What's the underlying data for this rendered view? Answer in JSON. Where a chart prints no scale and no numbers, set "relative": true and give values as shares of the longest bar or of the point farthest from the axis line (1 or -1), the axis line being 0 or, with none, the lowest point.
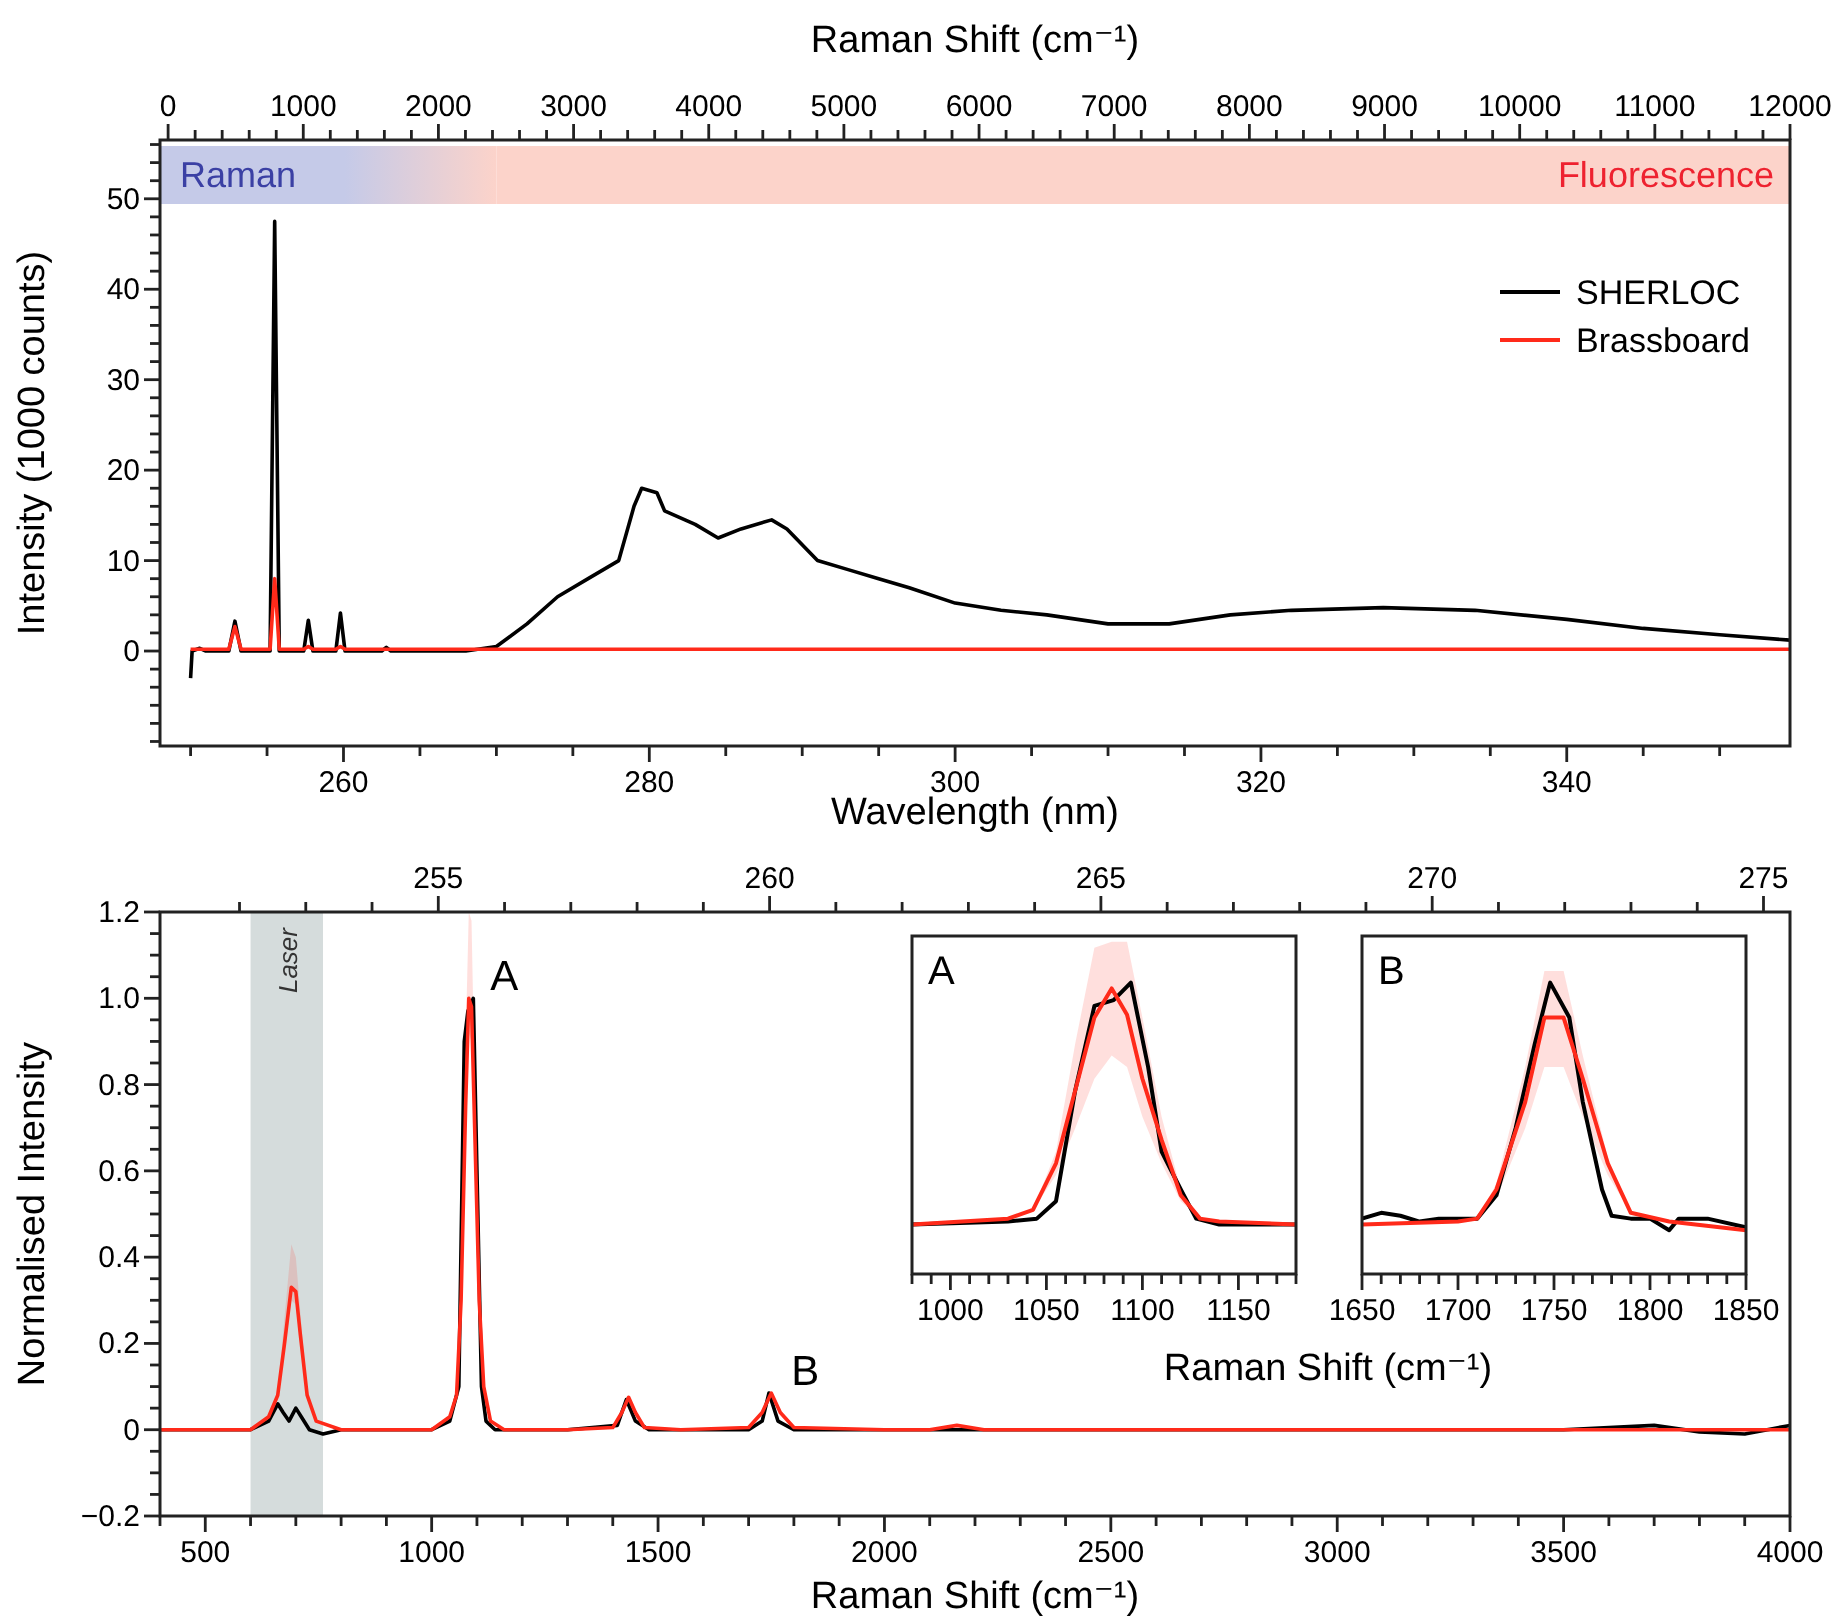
{
  "chart_data": [
    {
      "type": "line",
      "xlabel": "Wavelength (nm)",
      "x2label": "Raman Shift (cm⁻¹)",
      "ylabel": "Intensity (1000 counts)",
      "xlim": [
        248,
        354.6
      ],
      "x2lim": [
        -60,
        12000
      ],
      "ylim": [
        -10.5,
        56.5
      ],
      "xticks": [
        260,
        280,
        300,
        320,
        340,
        {
          "value": 250,
          "label": null
        },
        {
          "value": 255,
          "label": null
        },
        {
          "value": 265,
          "label": null
        },
        {
          "value": 270,
          "label": null
        },
        {
          "value": 275,
          "label": null
        },
        {
          "value": 285,
          "label": null
        },
        {
          "value": 290,
          "label": null
        },
        {
          "value": 295,
          "label": null
        },
        {
          "value": 305,
          "label": null
        },
        {
          "value": 310,
          "label": null
        },
        {
          "value": 315,
          "label": null
        },
        {
          "value": 325,
          "label": null
        },
        {
          "value": 330,
          "label": null
        },
        {
          "value": 335,
          "label": null
        },
        {
          "value": 345,
          "label": null
        },
        {
          "value": 350,
          "label": null
        }
      ],
      "x2ticks": [
        0,
        1000,
        2000,
        3000,
        4000,
        5000,
        6000,
        7000,
        8000,
        9000,
        10000,
        11000,
        12000,
        {
          "value": 200,
          "label": null
        },
        {
          "value": 400,
          "label": null
        },
        {
          "value": 600,
          "label": null
        },
        {
          "value": 800,
          "label": null
        },
        {
          "value": 1200,
          "label": null
        },
        {
          "value": 1400,
          "label": null
        },
        {
          "value": 1600,
          "label": null
        },
        {
          "value": 1800,
          "label": null
        },
        {
          "value": 2200,
          "label": null
        },
        {
          "value": 2400,
          "label": null
        },
        {
          "value": 2600,
          "label": null
        },
        {
          "value": 2800,
          "label": null
        },
        {
          "value": 3200,
          "label": null
        },
        {
          "value": 3400,
          "label": null
        },
        {
          "value": 3600,
          "label": null
        },
        {
          "value": 3800,
          "label": null
        },
        {
          "value": 4200,
          "label": null
        },
        {
          "value": 4400,
          "label": null
        },
        {
          "value": 4600,
          "label": null
        },
        {
          "value": 4800,
          "label": null
        },
        {
          "value": 5200,
          "label": null
        },
        {
          "value": 5400,
          "label": null
        },
        {
          "value": 5600,
          "label": null
        },
        {
          "value": 5800,
          "label": null
        },
        {
          "value": 6200,
          "label": null
        },
        {
          "value": 6400,
          "label": null
        },
        {
          "value": 6600,
          "label": null
        },
        {
          "value": 6800,
          "label": null
        },
        {
          "value": 7200,
          "label": null
        },
        {
          "value": 7400,
          "label": null
        },
        {
          "value": 7600,
          "label": null
        },
        {
          "value": 7800,
          "label": null
        },
        {
          "value": 8200,
          "label": null
        },
        {
          "value": 8400,
          "label": null
        },
        {
          "value": 8600,
          "label": null
        },
        {
          "value": 8800,
          "label": null
        },
        {
          "value": 9200,
          "label": null
        },
        {
          "value": 9400,
          "label": null
        },
        {
          "value": 9600,
          "label": null
        },
        {
          "value": 9800,
          "label": null
        },
        {
          "value": 10200,
          "label": null
        },
        {
          "value": 10400,
          "label": null
        },
        {
          "value": 10600,
          "label": null
        },
        {
          "value": 10800,
          "label": null
        },
        {
          "value": 11200,
          "label": null
        },
        {
          "value": 11400,
          "label": null
        },
        {
          "value": 11600,
          "label": null
        },
        {
          "value": 11800,
          "label": null
        }
      ],
      "yticks": [
        0,
        10,
        20,
        30,
        40,
        50,
        {
          "value": -10,
          "label": null
        },
        {
          "value": -8,
          "label": null
        },
        {
          "value": -6,
          "label": null
        },
        {
          "value": -4,
          "label": null
        },
        {
          "value": -2,
          "label": null
        },
        {
          "value": 2,
          "label": null
        },
        {
          "value": 4,
          "label": null
        },
        {
          "value": 6,
          "label": null
        },
        {
          "value": 8,
          "label": null
        },
        {
          "value": 12,
          "label": null
        },
        {
          "value": 14,
          "label": null
        },
        {
          "value": 16,
          "label": null
        },
        {
          "value": 18,
          "label": null
        },
        {
          "value": 22,
          "label": null
        },
        {
          "value": 24,
          "label": null
        },
        {
          "value": 26,
          "label": null
        },
        {
          "value": 28,
          "label": null
        },
        {
          "value": 32,
          "label": null
        },
        {
          "value": 34,
          "label": null
        },
        {
          "value": 36,
          "label": null
        },
        {
          "value": 38,
          "label": null
        },
        {
          "value": 42,
          "label": null
        },
        {
          "value": 44,
          "label": null
        },
        {
          "value": 46,
          "label": null
        },
        {
          "value": 48,
          "label": null
        },
        {
          "value": 52,
          "label": null
        },
        {
          "value": 54,
          "label": null
        },
        {
          "value": 56,
          "label": null
        }
      ],
      "bands": [
        {
          "axis": "x",
          "from": 248,
          "to": 270,
          "label": "Raman",
          "color": "#c5cae8"
        },
        {
          "axis": "x",
          "from": 270,
          "to": 354.6,
          "label": "Fluorescence",
          "color": "#fcd3ca"
        }
      ],
      "legend": "top right",
      "series": [
        {
          "name": "SHERLOC",
          "color": "#000000",
          "x": [
            250,
            250.1,
            250.6,
            251,
            252.5,
            252.9,
            253.3,
            254,
            255.2,
            255.5,
            255.8,
            256.5,
            257.4,
            257.7,
            258,
            259.5,
            259.8,
            260.1,
            262.5,
            262.8,
            263.1,
            268,
            270,
            272,
            274,
            276,
            278,
            279,
            279.5,
            280.5,
            281,
            283,
            284.5,
            286,
            288,
            289,
            291,
            293,
            295,
            297,
            300,
            303,
            306,
            310,
            314,
            318,
            322,
            328,
            334,
            340,
            345,
            350,
            354.6
          ],
          "values": [
            -3,
            0,
            0.3,
            0,
            0,
            3.3,
            0,
            0,
            0,
            47.5,
            0,
            0,
            0,
            3.4,
            0,
            0,
            4.2,
            0,
            0,
            0.4,
            0,
            0,
            0.5,
            3,
            6,
            8,
            10,
            16,
            18,
            17.5,
            15.5,
            14,
            12.5,
            13.5,
            14.5,
            13.5,
            10,
            9,
            8,
            7,
            5.3,
            4.5,
            4,
            3,
            3,
            4,
            4.5,
            4.8,
            4.5,
            3.5,
            2.5,
            1.8,
            1.2
          ]
        },
        {
          "name": "Brassboard",
          "color": "#ff2a1a",
          "x": [
            250,
            252.5,
            252.9,
            253.3,
            255.2,
            255.5,
            255.8,
            257.4,
            257.7,
            258,
            259.5,
            259.8,
            260.1,
            354.6
          ],
          "values": [
            0.2,
            0.2,
            2.7,
            0.2,
            0.2,
            8,
            0.2,
            0.2,
            0.5,
            0.2,
            0.2,
            0.5,
            0.2,
            0.2
          ]
        }
      ]
    },
    {
      "type": "line",
      "xlabel": "Raman Shift (cm⁻¹)",
      "ylabel": "Normalised Intensity",
      "xlim": [
        400,
        4000
      ],
      "x2lim": [
        250.8,
        275.4
      ],
      "ylim": [
        -0.2,
        1.2
      ],
      "xticks": [
        500,
        1000,
        1500,
        2000,
        2500,
        3000,
        3500,
        4000,
        {
          "value": 400,
          "label": null
        },
        {
          "value": 600,
          "label": null
        },
        {
          "value": 700,
          "label": null
        },
        {
          "value": 800,
          "label": null
        },
        {
          "value": 900,
          "label": null
        },
        {
          "value": 1100,
          "label": null
        },
        {
          "value": 1200,
          "label": null
        },
        {
          "value": 1300,
          "label": null
        },
        {
          "value": 1400,
          "label": null
        },
        {
          "value": 1600,
          "label": null
        },
        {
          "value": 1700,
          "label": null
        },
        {
          "value": 1800,
          "label": null
        },
        {
          "value": 1900,
          "label": null
        },
        {
          "value": 2100,
          "label": null
        },
        {
          "value": 2200,
          "label": null
        },
        {
          "value": 2300,
          "label": null
        },
        {
          "value": 2400,
          "label": null
        },
        {
          "value": 2600,
          "label": null
        },
        {
          "value": 2700,
          "label": null
        },
        {
          "value": 2800,
          "label": null
        },
        {
          "value": 2900,
          "label": null
        },
        {
          "value": 3100,
          "label": null
        },
        {
          "value": 3200,
          "label": null
        },
        {
          "value": 3300,
          "label": null
        },
        {
          "value": 3400,
          "label": null
        },
        {
          "value": 3600,
          "label": null
        },
        {
          "value": 3700,
          "label": null
        },
        {
          "value": 3800,
          "label": null
        },
        {
          "value": 3900,
          "label": null
        }
      ],
      "x2ticks": [
        255,
        260,
        265,
        270,
        275,
        {
          "value": 252,
          "label": null
        },
        {
          "value": 253,
          "label": null
        },
        {
          "value": 254,
          "label": null
        },
        {
          "value": 256,
          "label": null
        },
        {
          "value": 257,
          "label": null
        },
        {
          "value": 258,
          "label": null
        },
        {
          "value": 259,
          "label": null
        },
        {
          "value": 261,
          "label": null
        },
        {
          "value": 262,
          "label": null
        },
        {
          "value": 263,
          "label": null
        },
        {
          "value": 264,
          "label": null
        },
        {
          "value": 266,
          "label": null
        },
        {
          "value": 267,
          "label": null
        },
        {
          "value": 268,
          "label": null
        },
        {
          "value": 269,
          "label": null
        },
        {
          "value": 271,
          "label": null
        },
        {
          "value": 272,
          "label": null
        },
        {
          "value": 273,
          "label": null
        },
        {
          "value": 274,
          "label": null
        }
      ],
      "yticks": [
        {
          "value": -0.2,
          "label": "−0.2"
        },
        0,
        {
          "value": 0.2,
          "label": "0.2"
        },
        {
          "value": 0.4,
          "label": "0.4"
        },
        {
          "value": 0.6,
          "label": "0.6"
        },
        {
          "value": 0.8,
          "label": "0.8"
        },
        {
          "value": 1,
          "label": "1.0"
        },
        {
          "value": 1.2,
          "label": "1.2"
        },
        {
          "value": -0.15,
          "label": null
        },
        {
          "value": -0.1,
          "label": null
        },
        {
          "value": -0.05,
          "label": null
        },
        {
          "value": 0.05,
          "label": null
        },
        {
          "value": 0.1,
          "label": null
        },
        {
          "value": 0.15,
          "label": null
        },
        {
          "value": 0.25,
          "label": null
        },
        {
          "value": 0.3,
          "label": null
        },
        {
          "value": 0.35,
          "label": null
        },
        {
          "value": 0.45,
          "label": null
        },
        {
          "value": 0.5,
          "label": null
        },
        {
          "value": 0.55,
          "label": null
        },
        {
          "value": 0.65,
          "label": null
        },
        {
          "value": 0.7,
          "label": null
        },
        {
          "value": 0.75,
          "label": null
        },
        {
          "value": 0.85,
          "label": null
        },
        {
          "value": 0.9,
          "label": null
        },
        {
          "value": 0.95,
          "label": null
        },
        {
          "value": 1.05,
          "label": null
        },
        {
          "value": 1.1,
          "label": null
        },
        {
          "value": 1.15,
          "label": null
        }
      ],
      "bands": [
        {
          "axis": "x",
          "from": 600,
          "to": 760,
          "label": "Laser",
          "color": "#d5dcdc"
        }
      ],
      "annotations": [
        {
          "text": "A",
          "x": 1085,
          "y": 1.0
        },
        {
          "text": "B",
          "x": 1750,
          "y": 0.085
        }
      ],
      "series": [
        {
          "color": "#000000",
          "x": [
            400,
            600,
            640,
            660,
            672,
            685,
            700,
            712,
            730,
            760,
            800,
            1000,
            1040,
            1060,
            1072,
            1080,
            1092,
            1100,
            1110,
            1120,
            1140,
            1300,
            1410,
            1430,
            1450,
            1480,
            1700,
            1730,
            1745,
            1765,
            1800,
            2500,
            3000,
            3500,
            3700,
            3800,
            3900,
            4000
          ],
          "values": [
            0,
            0,
            0.02,
            0.06,
            0.04,
            0.02,
            0.05,
            0.03,
            0.0,
            -0.01,
            0,
            0,
            0.02,
            0.1,
            0.9,
            0.97,
            1.0,
            0.6,
            0.1,
            0.02,
            0,
            0,
            0.01,
            0.07,
            0.02,
            0,
            0,
            0.02,
            0.085,
            0.02,
            0,
            0,
            0,
            0,
            0.01,
            -0.005,
            -0.01,
            0.01
          ]
        },
        {
          "color": "#ff2a1a",
          "x": [
            400,
            500,
            600,
            640,
            660,
            675,
            690,
            700,
            710,
            725,
            745,
            800,
            1000,
            1040,
            1055,
            1065,
            1075,
            1082,
            1088,
            1095,
            1105,
            1115,
            1130,
            1160,
            1300,
            1400,
            1420,
            1435,
            1450,
            1470,
            1550,
            1700,
            1730,
            1750,
            1770,
            1800,
            2000,
            2100,
            2160,
            2220,
            2500,
            3000,
            3500,
            4000
          ],
          "values": [
            0,
            0,
            0,
            0.03,
            0.08,
            0.2,
            0.33,
            0.32,
            0.22,
            0.08,
            0.02,
            0,
            0,
            0.03,
            0.08,
            0.3,
            0.75,
            1.0,
            0.98,
            0.7,
            0.3,
            0.1,
            0.02,
            0,
            0,
            0.005,
            0.04,
            0.075,
            0.04,
            0.005,
            0,
            0.005,
            0.04,
            0.085,
            0.04,
            0.005,
            0,
            0,
            0.01,
            0,
            0,
            0,
            0,
            0
          ],
          "upper": [
            0,
            0,
            0,
            0.03,
            0.08,
            0.26,
            0.43,
            0.4,
            0.27,
            0.08,
            0.02,
            0,
            0,
            0.03,
            0.08,
            0.3,
            0.9,
            1.2,
            1.18,
            0.8,
            0.3,
            0.1,
            0.02,
            0,
            0,
            0.005,
            0.04,
            0.075,
            0.04,
            0.005,
            0,
            0.005,
            0.04,
            0.085,
            0.04,
            0.005,
            0,
            0,
            0.01,
            0,
            0,
            0,
            0,
            0
          ],
          "lower": [
            0,
            0,
            0,
            0.03,
            0.08,
            0.18,
            0.3,
            0.29,
            0.2,
            0.08,
            0.02,
            0,
            0,
            0.03,
            0.08,
            0.28,
            0.7,
            0.92,
            0.9,
            0.62,
            0.3,
            0.1,
            0.02,
            0,
            0,
            0.005,
            0.04,
            0.075,
            0.04,
            0.005,
            0,
            0.005,
            0.04,
            0.085,
            0.04,
            0.005,
            0,
            0,
            0.01,
            0,
            0,
            0,
            0,
            0
          ]
        }
      ]
    },
    {
      "type": "line",
      "title": "A",
      "xlabel": "Raman Shift (cm⁻¹)",
      "relative": true,
      "xlim": [
        980,
        1180
      ],
      "xticks": [
        1000,
        1050,
        1100,
        1150,
        {
          "value": 980,
          "label": null
        },
        {
          "value": 990,
          "label": null
        },
        {
          "value": 1010,
          "label": null
        },
        {
          "value": 1020,
          "label": null
        },
        {
          "value": 1030,
          "label": null
        },
        {
          "value": 1040,
          "label": null
        },
        {
          "value": 1060,
          "label": null
        },
        {
          "value": 1070,
          "label": null
        },
        {
          "value": 1080,
          "label": null
        },
        {
          "value": 1090,
          "label": null
        },
        {
          "value": 1110,
          "label": null
        },
        {
          "value": 1120,
          "label": null
        },
        {
          "value": 1130,
          "label": null
        },
        {
          "value": 1140,
          "label": null
        },
        {
          "value": 1160,
          "label": null
        },
        {
          "value": 1170,
          "label": null
        },
        {
          "value": 1180,
          "label": null
        }
      ],
      "series": [
        {
          "color": "#000000",
          "x": [
            980,
            1030,
            1045,
            1055,
            1065,
            1075,
            1085,
            1094,
            1103,
            1110,
            1120,
            1128,
            1140,
            1180
          ],
          "values": [
            0.17,
            0.18,
            0.19,
            0.25,
            0.63,
            0.92,
            0.94,
            1.0,
            0.71,
            0.42,
            0.29,
            0.19,
            0.17,
            0.17
          ]
        },
        {
          "color": "#ff2a1a",
          "x": [
            980,
            1030,
            1043,
            1055,
            1065,
            1075,
            1084,
            1092,
            1100,
            1110,
            1120,
            1130,
            1140,
            1180
          ],
          "values": [
            0.17,
            0.19,
            0.22,
            0.38,
            0.63,
            0.88,
            0.98,
            0.89,
            0.67,
            0.46,
            0.27,
            0.19,
            0.18,
            0.17
          ],
          "upper": [
            0.17,
            0.19,
            0.22,
            0.42,
            0.79,
            1.12,
            1.14,
            1.14,
            0.88,
            0.54,
            0.29,
            0.19,
            0.18,
            0.17
          ],
          "lower": [
            0.17,
            0.19,
            0.22,
            0.34,
            0.5,
            0.67,
            0.75,
            0.71,
            0.54,
            0.38,
            0.25,
            0.19,
            0.18,
            0.17
          ]
        }
      ]
    },
    {
      "type": "line",
      "title": "B",
      "relative": true,
      "xlim": [
        1650,
        1850
      ],
      "xticks": [
        1650,
        1700,
        1750,
        1800,
        1850,
        {
          "value": 1660,
          "label": null
        },
        {
          "value": 1670,
          "label": null
        },
        {
          "value": 1680,
          "label": null
        },
        {
          "value": 1690,
          "label": null
        },
        {
          "value": 1710,
          "label": null
        },
        {
          "value": 1720,
          "label": null
        },
        {
          "value": 1730,
          "label": null
        },
        {
          "value": 1740,
          "label": null
        },
        {
          "value": 1760,
          "label": null
        },
        {
          "value": 1770,
          "label": null
        },
        {
          "value": 1780,
          "label": null
        },
        {
          "value": 1790,
          "label": null
        },
        {
          "value": 1810,
          "label": null
        },
        {
          "value": 1820,
          "label": null
        },
        {
          "value": 1830,
          "label": null
        },
        {
          "value": 1840,
          "label": null
        }
      ],
      "series": [
        {
          "color": "#000000",
          "x": [
            1650,
            1660,
            1670,
            1680,
            1690,
            1710,
            1720,
            1730,
            1740,
            1748,
            1758,
            1765,
            1775,
            1780,
            1790,
            1800,
            1810,
            1815,
            1830,
            1850
          ],
          "values": [
            0.19,
            0.21,
            0.2,
            0.18,
            0.19,
            0.19,
            0.27,
            0.5,
            0.79,
            1.0,
            0.88,
            0.59,
            0.29,
            0.2,
            0.19,
            0.19,
            0.15,
            0.19,
            0.19,
            0.16
          ]
        },
        {
          "color": "#ff2a1a",
          "x": [
            1650,
            1700,
            1710,
            1720,
            1735,
            1745,
            1755,
            1765,
            1778,
            1790,
            1810,
            1850
          ],
          "values": [
            0.17,
            0.18,
            0.19,
            0.29,
            0.59,
            0.88,
            0.88,
            0.67,
            0.38,
            0.21,
            0.18,
            0.15
          ],
          "upper": [
            0.17,
            0.18,
            0.19,
            0.31,
            0.71,
            1.04,
            1.04,
            0.75,
            0.4,
            0.21,
            0.18,
            0.15
          ],
          "lower": [
            0.17,
            0.18,
            0.19,
            0.26,
            0.5,
            0.71,
            0.71,
            0.54,
            0.34,
            0.21,
            0.18,
            0.15
          ]
        }
      ]
    }
  ]
}
